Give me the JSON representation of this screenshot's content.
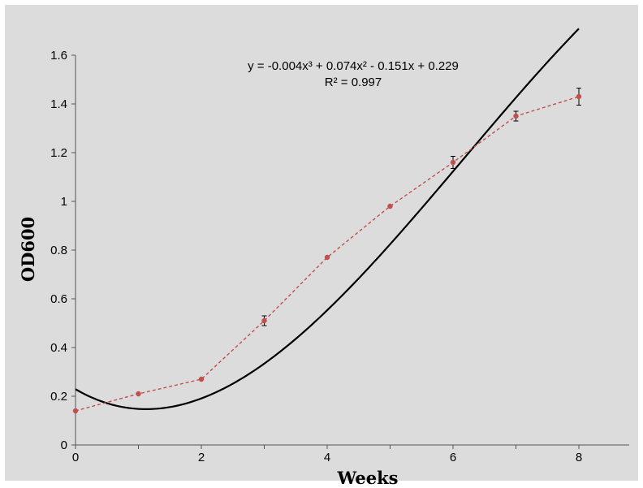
{
  "chart_data": {
    "type": "line",
    "xlabel": "Weeks",
    "ylabel": "OD600",
    "xlim": [
      0,
      8.8
    ],
    "ylim": [
      0,
      1.6
    ],
    "x_ticks": [
      "0",
      "2",
      "4",
      "6",
      "8"
    ],
    "y_ticks": [
      "0",
      "0.2",
      "0.4",
      "0.6",
      "0.8",
      "1",
      "1.2",
      "1.4",
      "1.6"
    ],
    "grid": false,
    "background_color": "#dcdcdc",
    "series": [
      {
        "style": "dashed-line-with-markers",
        "color": "#c0504d",
        "x": [
          0,
          1,
          2,
          3,
          4,
          5,
          6,
          7,
          8
        ],
        "y": [
          0.14,
          0.21,
          0.27,
          0.51,
          0.77,
          0.98,
          1.16,
          1.35,
          1.43
        ],
        "error_bars": [
          0,
          0,
          0,
          0.02,
          0,
          0,
          0.025,
          0.02,
          0.035
        ]
      },
      {
        "style": "solid-fit-curve",
        "color": "#000000",
        "fit_coefficients": [
          -0.004,
          0.074,
          -0.151,
          0.229
        ]
      }
    ],
    "annotations": {
      "equation": "y = -0.004x³ + 0.074x² - 0.151x + 0.229",
      "r_squared": "R² = 0.997"
    }
  }
}
